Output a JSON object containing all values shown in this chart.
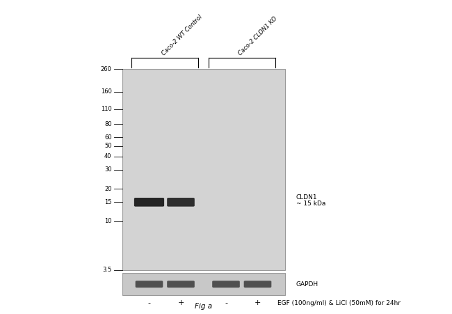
{
  "gel_bg_color": "#d3d3d3",
  "gapdh_bg_color": "#c8c8c8",
  "band_color": "#111111",
  "mw_markers": [
    "260",
    "160",
    "110",
    "80",
    "60",
    "50",
    "40",
    "30",
    "20",
    "15",
    "10",
    "3.5"
  ],
  "mw_log_vals": [
    260,
    160,
    110,
    80,
    60,
    50,
    40,
    30,
    20,
    15,
    10,
    3.5
  ],
  "label_group1": "Caco-2 WT Control",
  "label_group2": "Caco-2 CLDN1 KO",
  "label_cldn1": "CLDN1",
  "label_cldn1_kda": "~ 15 kDa",
  "label_gapdh": "GAPDH",
  "treatment_labels": [
    "-",
    "+",
    "-",
    "+"
  ],
  "treatment_text": "EGF (100ng/ml) & LiCl (50mM) for 24hr",
  "fig_label": "Fig a",
  "figure_width": 6.5,
  "figure_height": 4.51
}
